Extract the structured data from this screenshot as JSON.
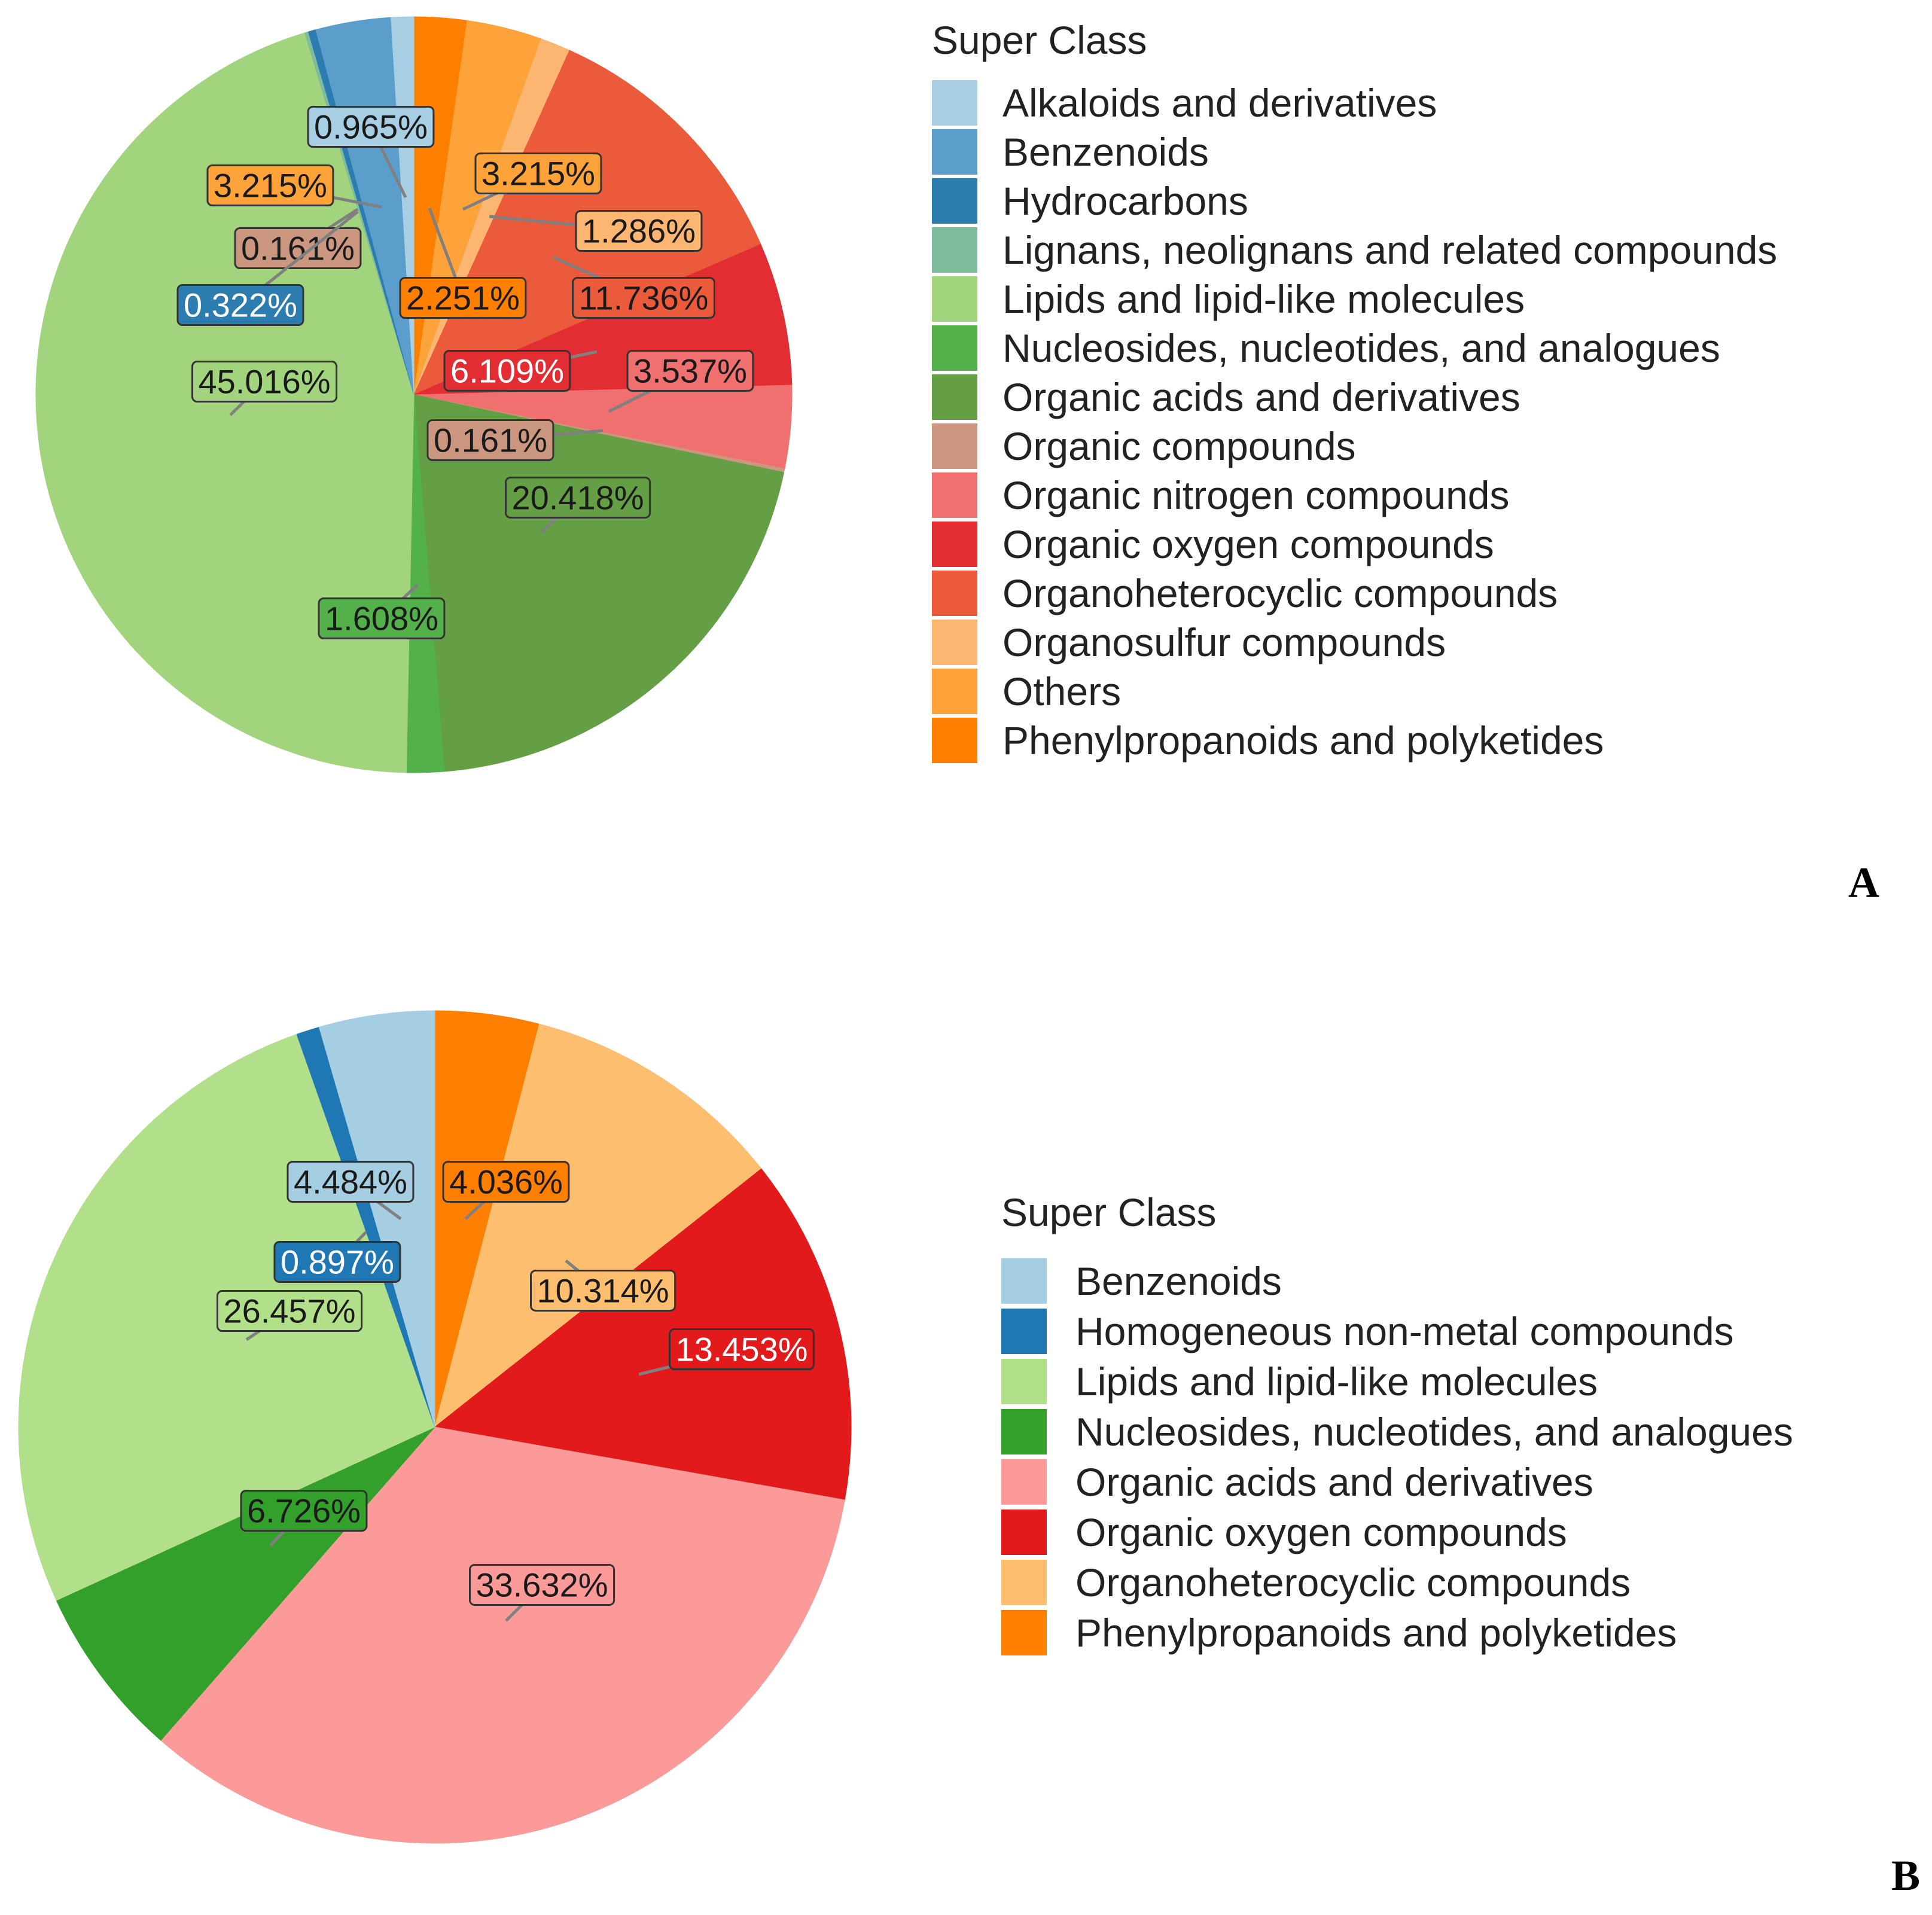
{
  "chart_data": [
    {
      "type": "pie",
      "panel_label": "A",
      "legend_title": "Super Class",
      "slices": [
        {
          "label": "Phenylpropanoids and polyketides",
          "value": 2.251,
          "color": "#ff7f00"
        },
        {
          "label": "Others",
          "value": 3.215,
          "color": "#fda33a"
        },
        {
          "label": "Organosulfur compounds",
          "value": 1.286,
          "color": "#fdb672"
        },
        {
          "label": "Organoheterocyclic compounds",
          "value": 11.736,
          "color": "#ec5a3c"
        },
        {
          "label": "Organic oxygen compounds",
          "value": 6.109,
          "color": "#e22d33"
        },
        {
          "label": "Organic nitrogen compounds",
          "value": 3.537,
          "color": "#f07070"
        },
        {
          "label": "Organic compounds",
          "value": 0.161,
          "color": "#cc9780"
        },
        {
          "label": "Organic acids and derivatives",
          "value": 20.418,
          "color": "#659f45"
        },
        {
          "label": "Nucleosides, nucleotides, and analogues",
          "value": 1.608,
          "color": "#53b04a"
        },
        {
          "label": "Lipids and lipid-like molecules",
          "value": 45.016,
          "color": "#a2d47e"
        },
        {
          "label": "Lignans, neolignans and related compounds",
          "value": 0.161,
          "color": "#7fbb9d"
        },
        {
          "label": "Hydrocarbons",
          "value": 0.322,
          "color": "#2c7cb0"
        },
        {
          "label": "Benzenoids",
          "value": 3.215,
          "color": "#5b9ecc"
        },
        {
          "label": "Alkaloids and derivatives",
          "value": 0.965,
          "color": "#a8cee3"
        }
      ],
      "data_labels": [
        "0.965%",
        "3.215%",
        "0.161%",
        "0.322%",
        "45.016%",
        "2.251%",
        "3.215%",
        "1.286%",
        "11.736%",
        "6.109%",
        "3.537%",
        "0.161%",
        "20.418%",
        "1.608%"
      ],
      "legend_entries": [
        {
          "label": "Alkaloids and derivatives",
          "color": "#a8cee3"
        },
        {
          "label": "Benzenoids",
          "color": "#5b9ecc"
        },
        {
          "label": "Hydrocarbons",
          "color": "#2c7cb0"
        },
        {
          "label": "Lignans, neolignans and related compounds",
          "color": "#7fbb9d"
        },
        {
          "label": "Lipids and lipid-like molecules",
          "color": "#a2d47e"
        },
        {
          "label": "Nucleosides, nucleotides, and analogues",
          "color": "#53b04a"
        },
        {
          "label": "Organic acids and derivatives",
          "color": "#659f45"
        },
        {
          "label": "Organic compounds",
          "color": "#cc9780"
        },
        {
          "label": "Organic nitrogen compounds",
          "color": "#f07070"
        },
        {
          "label": "Organic oxygen compounds",
          "color": "#e22d33"
        },
        {
          "label": "Organoheterocyclic compounds",
          "color": "#ec5a3c"
        },
        {
          "label": "Organosulfur compounds",
          "color": "#fdb672"
        },
        {
          "label": "Others",
          "color": "#fda33a"
        },
        {
          "label": "Phenylpropanoids and polyketides",
          "color": "#ff7f00"
        }
      ],
      "legend_placement": "right"
    },
    {
      "type": "pie",
      "panel_label": "B",
      "legend_title": "Super Class",
      "slices": [
        {
          "label": "Phenylpropanoids and polyketides",
          "value": 4.036,
          "color": "#ff7f00"
        },
        {
          "label": "Organoheterocyclic compounds",
          "value": 10.314,
          "color": "#fdbf6f"
        },
        {
          "label": "Organic oxygen compounds",
          "value": 13.453,
          "color": "#e31a1c"
        },
        {
          "label": "Organic acids and derivatives",
          "value": 33.632,
          "color": "#fb9a99"
        },
        {
          "label": "Nucleosides, nucleotides, and analogues",
          "value": 6.726,
          "color": "#33a02c"
        },
        {
          "label": "Lipids and lipid-like molecules",
          "value": 26.457,
          "color": "#b2df8a"
        },
        {
          "label": "Homogeneous non-metal compounds",
          "value": 0.897,
          "color": "#1f78b4"
        },
        {
          "label": "Benzenoids",
          "value": 4.484,
          "color": "#a6cee3"
        }
      ],
      "data_labels": [
        "4.484%",
        "4.036%",
        "0.897%",
        "10.314%",
        "26.457%",
        "13.453%",
        "6.726%",
        "33.632%"
      ],
      "legend_entries": [
        {
          "label": "Benzenoids",
          "color": "#a6cee3"
        },
        {
          "label": "Homogeneous non-metal compounds",
          "color": "#1f78b4"
        },
        {
          "label": "Lipids and lipid-like molecules",
          "color": "#b2df8a"
        },
        {
          "label": "Nucleosides, nucleotides, and analogues",
          "color": "#33a02c"
        },
        {
          "label": "Organic acids and derivatives",
          "color": "#fb9a99"
        },
        {
          "label": "Organic oxygen compounds",
          "color": "#e31a1c"
        },
        {
          "label": "Organoheterocyclic compounds",
          "color": "#fdbf6f"
        },
        {
          "label": "Phenylpropanoids and polyketides",
          "color": "#ff7f00"
        }
      ],
      "legend_placement": "right"
    }
  ]
}
